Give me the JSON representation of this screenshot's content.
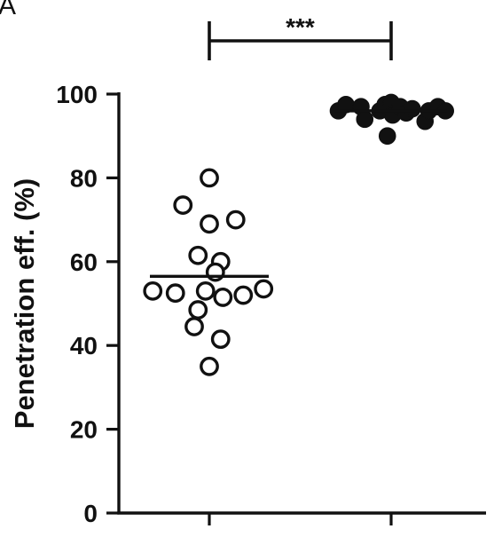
{
  "panel_label": "A",
  "chart_data": {
    "type": "scatter",
    "ylabel": "Penetration eff. (%)",
    "xlabel": "",
    "categories": [
      "",
      ""
    ],
    "ylim": [
      0,
      100
    ],
    "yticks": [
      "0",
      "20",
      "40",
      "60",
      "80",
      "100"
    ],
    "significance": {
      "label": "***",
      "between": [
        0,
        1
      ]
    },
    "series": [
      {
        "marker": "open-circle",
        "mean": 56.5,
        "points": [
          {
            "x": 0,
            "y": 80.0
          },
          {
            "x": -0.35,
            "y": 73.5
          },
          {
            "x": 0.35,
            "y": 70.0
          },
          {
            "x": 0,
            "y": 69.0
          },
          {
            "x": -0.15,
            "y": 61.5
          },
          {
            "x": 0.15,
            "y": 60.0
          },
          {
            "x": 0.08,
            "y": 57.5
          },
          {
            "x": -0.75,
            "y": 53.0
          },
          {
            "x": -0.45,
            "y": 52.5
          },
          {
            "x": -0.05,
            "y": 53.0
          },
          {
            "x": 0.18,
            "y": 51.5
          },
          {
            "x": 0.45,
            "y": 52.0
          },
          {
            "x": 0.72,
            "y": 53.5
          },
          {
            "x": -0.15,
            "y": 48.5
          },
          {
            "x": -0.2,
            "y": 44.5
          },
          {
            "x": 0.15,
            "y": 41.5
          },
          {
            "x": 0,
            "y": 35.0
          }
        ]
      },
      {
        "marker": "filled-circle",
        "mean": 96.0,
        "points": [
          {
            "x": -0.7,
            "y": 96.0
          },
          {
            "x": -0.6,
            "y": 97.5
          },
          {
            "x": -0.4,
            "y": 97.0
          },
          {
            "x": -0.35,
            "y": 94.0
          },
          {
            "x": -0.15,
            "y": 96.0
          },
          {
            "x": -0.08,
            "y": 97.5
          },
          {
            "x": 0,
            "y": 98.0
          },
          {
            "x": 0.02,
            "y": 95.0
          },
          {
            "x": 0.12,
            "y": 97.0
          },
          {
            "x": 0.2,
            "y": 95.5
          },
          {
            "x": 0.28,
            "y": 96.5
          },
          {
            "x": 0.45,
            "y": 93.5
          },
          {
            "x": 0.5,
            "y": 96.0
          },
          {
            "x": 0.62,
            "y": 97.0
          },
          {
            "x": 0.72,
            "y": 96.0
          },
          {
            "x": -0.05,
            "y": 90.0
          }
        ]
      }
    ],
    "grid": false,
    "colors": {
      "ink": "#111111",
      "background": "#ffffff"
    }
  }
}
